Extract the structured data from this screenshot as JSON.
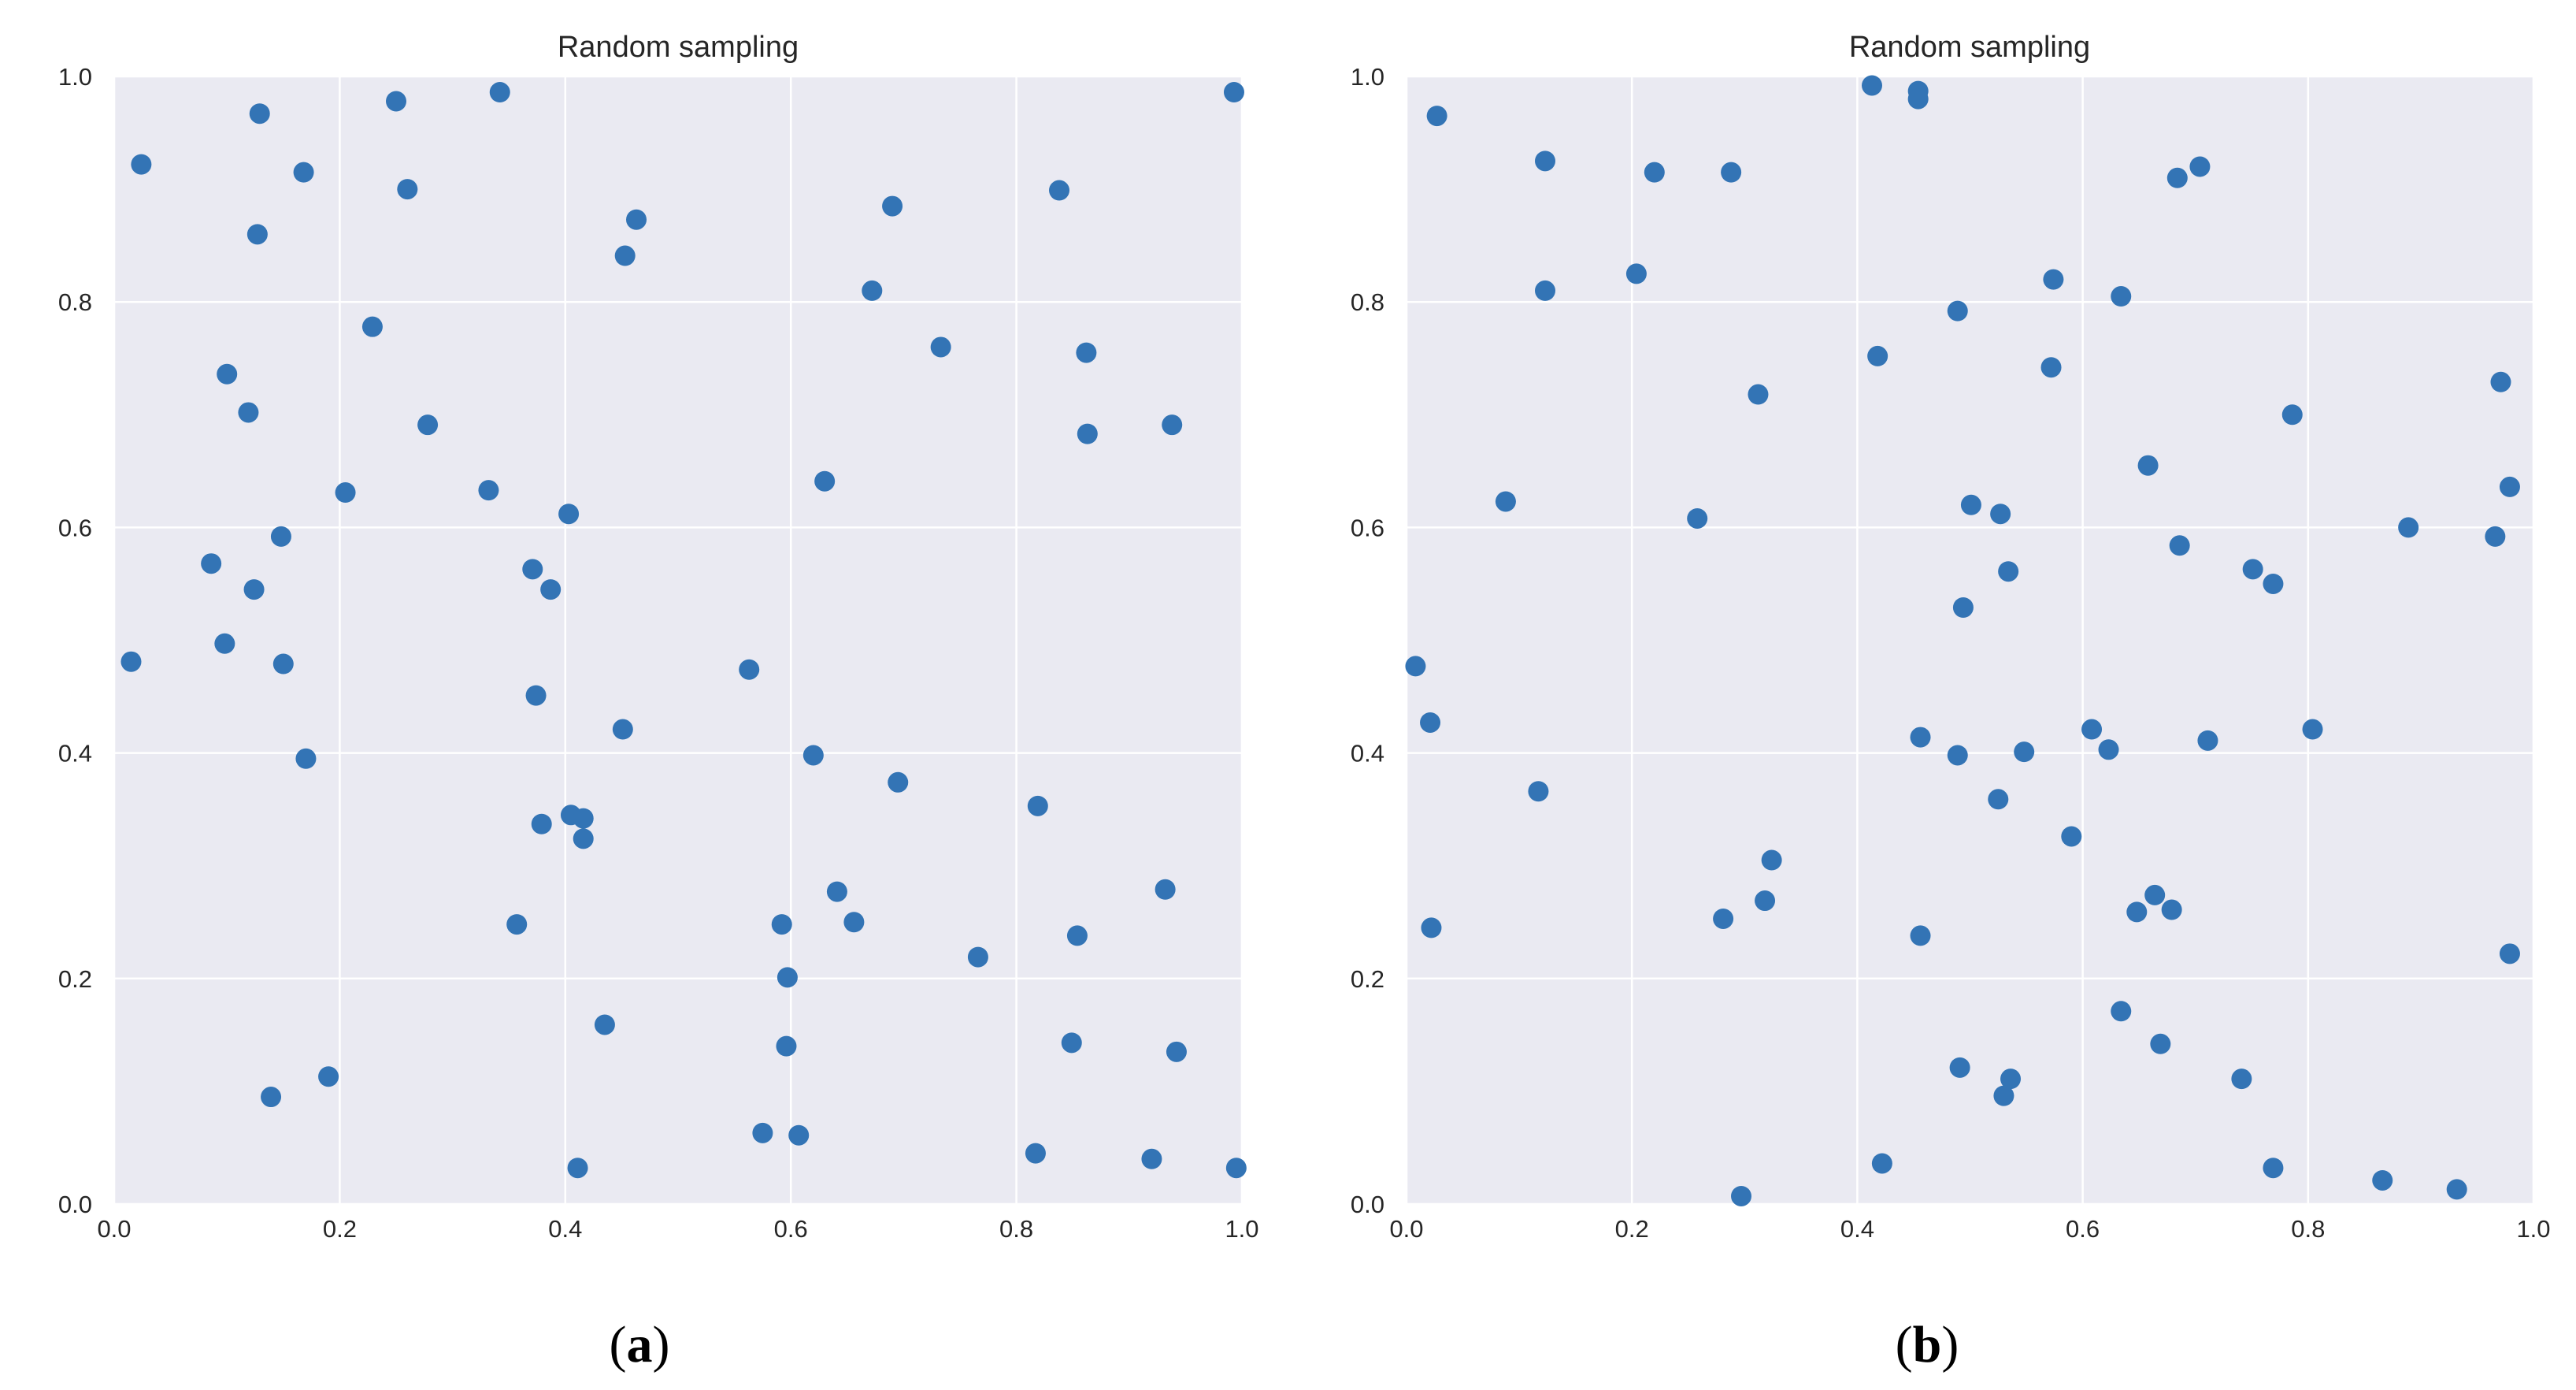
{
  "theme": {
    "plot_background": "#eaeaf2",
    "grid_color": "#ffffff",
    "marker_color": "#3374b5",
    "text_color": "#262626"
  },
  "panel_labels": [
    {
      "open": "(",
      "letter": "a",
      "close": ")"
    },
    {
      "open": "(",
      "letter": "b",
      "close": ")"
    }
  ],
  "chart_data": [
    {
      "type": "scatter",
      "title": "Random sampling",
      "xlabel": "",
      "ylabel": "",
      "xlim": [
        0,
        1
      ],
      "ylim": [
        0,
        1
      ],
      "xticks": [
        "0.0",
        "0.2",
        "0.4",
        "0.6",
        "0.8",
        "1.0"
      ],
      "yticks": [
        "0.0",
        "0.2",
        "0.4",
        "0.6",
        "0.8",
        "1.0"
      ],
      "grid": true,
      "series": [
        {
          "points": [
            [
              0.024,
              0.922
            ],
            [
              0.129,
              0.967
            ],
            [
              0.168,
              0.915
            ],
            [
              0.127,
              0.86
            ],
            [
              0.25,
              0.978
            ],
            [
              0.26,
              0.9
            ],
            [
              0.342,
              0.986
            ],
            [
              0.463,
              0.873
            ],
            [
              0.453,
              0.841
            ],
            [
              0.69,
              0.885
            ],
            [
              0.838,
              0.899
            ],
            [
              0.993,
              0.986
            ],
            [
              0.672,
              0.81
            ],
            [
              0.733,
              0.76
            ],
            [
              0.862,
              0.755
            ],
            [
              0.863,
              0.683
            ],
            [
              0.938,
              0.691
            ],
            [
              0.229,
              0.778
            ],
            [
              0.1,
              0.736
            ],
            [
              0.119,
              0.702
            ],
            [
              0.278,
              0.691
            ],
            [
              0.205,
              0.631
            ],
            [
              0.332,
              0.633
            ],
            [
              0.63,
              0.641
            ],
            [
              0.403,
              0.612
            ],
            [
              0.148,
              0.592
            ],
            [
              0.086,
              0.568
            ],
            [
              0.371,
              0.563
            ],
            [
              0.124,
              0.545
            ],
            [
              0.387,
              0.545
            ],
            [
              0.015,
              0.481
            ],
            [
              0.098,
              0.497
            ],
            [
              0.15,
              0.479
            ],
            [
              0.563,
              0.474
            ],
            [
              0.374,
              0.451
            ],
            [
              0.451,
              0.421
            ],
            [
              0.17,
              0.395
            ],
            [
              0.62,
              0.398
            ],
            [
              0.695,
              0.374
            ],
            [
              0.819,
              0.353
            ],
            [
              0.379,
              0.337
            ],
            [
              0.405,
              0.345
            ],
            [
              0.416,
              0.342
            ],
            [
              0.416,
              0.324
            ],
            [
              0.641,
              0.277
            ],
            [
              0.932,
              0.279
            ],
            [
              0.357,
              0.248
            ],
            [
              0.592,
              0.248
            ],
            [
              0.656,
              0.25
            ],
            [
              0.766,
              0.219
            ],
            [
              0.854,
              0.238
            ],
            [
              0.597,
              0.201
            ],
            [
              0.435,
              0.159
            ],
            [
              0.596,
              0.14
            ],
            [
              0.849,
              0.143
            ],
            [
              0.942,
              0.135
            ],
            [
              0.139,
              0.095
            ],
            [
              0.19,
              0.113
            ],
            [
              0.575,
              0.063
            ],
            [
              0.607,
              0.061
            ],
            [
              0.411,
              0.032
            ],
            [
              0.817,
              0.045
            ],
            [
              0.92,
              0.04
            ],
            [
              0.995,
              0.032
            ]
          ]
        }
      ]
    },
    {
      "type": "scatter",
      "title": "Random sampling",
      "xlabel": "",
      "ylabel": "",
      "xlim": [
        0,
        1
      ],
      "ylim": [
        0,
        1
      ],
      "xticks": [
        "0.0",
        "0.2",
        "0.4",
        "0.6",
        "0.8",
        "1.0"
      ],
      "yticks": [
        "0.0",
        "0.2",
        "0.4",
        "0.6",
        "0.8",
        "1.0"
      ],
      "grid": true,
      "series": [
        {
          "points": [
            [
              0.027,
              0.965
            ],
            [
              0.123,
              0.925
            ],
            [
              0.22,
              0.915
            ],
            [
              0.288,
              0.915
            ],
            [
              0.413,
              0.992
            ],
            [
              0.454,
              0.987
            ],
            [
              0.454,
              0.98
            ],
            [
              0.684,
              0.91
            ],
            [
              0.704,
              0.92
            ],
            [
              0.123,
              0.81
            ],
            [
              0.204,
              0.825
            ],
            [
              0.489,
              0.792
            ],
            [
              0.574,
              0.82
            ],
            [
              0.634,
              0.805
            ],
            [
              0.418,
              0.752
            ],
            [
              0.572,
              0.742
            ],
            [
              0.312,
              0.718
            ],
            [
              0.971,
              0.729
            ],
            [
              0.786,
              0.7
            ],
            [
              0.658,
              0.655
            ],
            [
              0.979,
              0.636
            ],
            [
              0.088,
              0.623
            ],
            [
              0.258,
              0.608
            ],
            [
              0.501,
              0.62
            ],
            [
              0.527,
              0.612
            ],
            [
              0.889,
              0.6
            ],
            [
              0.966,
              0.592
            ],
            [
              0.686,
              0.584
            ],
            [
              0.534,
              0.561
            ],
            [
              0.751,
              0.563
            ],
            [
              0.769,
              0.55
            ],
            [
              0.494,
              0.529
            ],
            [
              0.008,
              0.477
            ],
            [
              0.021,
              0.427
            ],
            [
              0.456,
              0.414
            ],
            [
              0.489,
              0.398
            ],
            [
              0.548,
              0.401
            ],
            [
              0.608,
              0.421
            ],
            [
              0.623,
              0.403
            ],
            [
              0.711,
              0.411
            ],
            [
              0.804,
              0.421
            ],
            [
              0.117,
              0.366
            ],
            [
              0.525,
              0.359
            ],
            [
              0.59,
              0.326
            ],
            [
              0.324,
              0.305
            ],
            [
              0.318,
              0.269
            ],
            [
              0.281,
              0.253
            ],
            [
              0.664,
              0.274
            ],
            [
              0.648,
              0.259
            ],
            [
              0.679,
              0.261
            ],
            [
              0.022,
              0.245
            ],
            [
              0.456,
              0.238
            ],
            [
              0.979,
              0.222
            ],
            [
              0.634,
              0.171
            ],
            [
              0.669,
              0.142
            ],
            [
              0.491,
              0.121
            ],
            [
              0.536,
              0.111
            ],
            [
              0.53,
              0.096
            ],
            [
              0.741,
              0.111
            ],
            [
              0.422,
              0.036
            ],
            [
              0.769,
              0.032
            ],
            [
              0.866,
              0.021
            ],
            [
              0.932,
              0.013
            ],
            [
              0.297,
              0.007
            ]
          ]
        }
      ]
    }
  ]
}
